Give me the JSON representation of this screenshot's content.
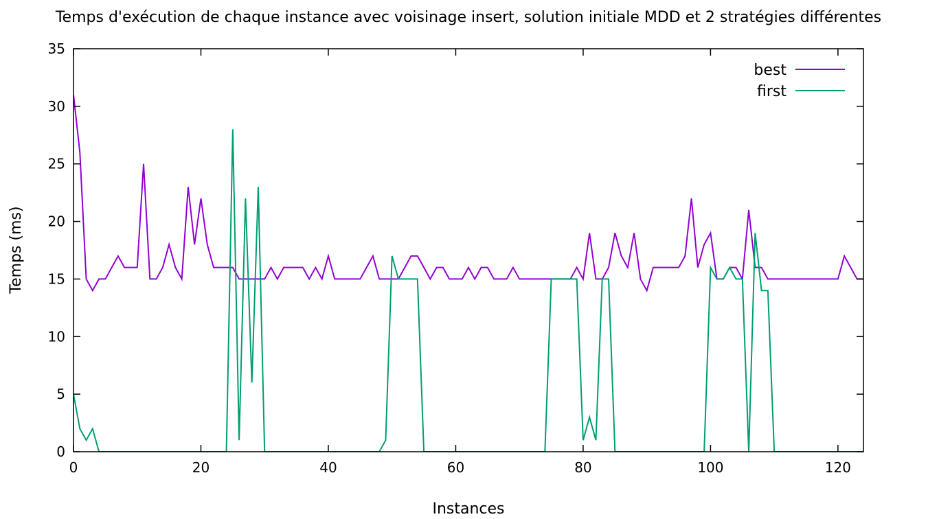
{
  "chart_data": {
    "type": "line",
    "title": "Temps d'exécution de chaque instance avec voisinage insert, solution initiale MDD et 2 stratégies différentes",
    "xlabel": "Instances",
    "ylabel": "Temps (ms)",
    "xlim": [
      0,
      124
    ],
    "ylim": [
      0,
      35
    ],
    "xticks": [
      0,
      20,
      40,
      60,
      80,
      100,
      120
    ],
    "yticks": [
      0,
      5,
      10,
      15,
      20,
      25,
      30,
      35
    ],
    "grid": false,
    "legend_position": "top-right",
    "series": [
      {
        "name": "best",
        "color": "#9400d3",
        "values": [
          31,
          26,
          15,
          14,
          15,
          15,
          16,
          17,
          16,
          16,
          16,
          25,
          15,
          15,
          16,
          18,
          16,
          15,
          23,
          18,
          22,
          18,
          16,
          16,
          16,
          16,
          15,
          15,
          15,
          15,
          15,
          16,
          15,
          16,
          16,
          16,
          16,
          15,
          16,
          15,
          17,
          15,
          15,
          15,
          15,
          15,
          16,
          17,
          15,
          15,
          15,
          15,
          16,
          17,
          17,
          16,
          15,
          16,
          16,
          15,
          15,
          15,
          16,
          15,
          16,
          16,
          15,
          15,
          15,
          16,
          15,
          15,
          15,
          15,
          15,
          15,
          15,
          15,
          15,
          16,
          15,
          19,
          15,
          15,
          16,
          19,
          17,
          16,
          19,
          15,
          14,
          16,
          16,
          16,
          16,
          16,
          17,
          22,
          16,
          18,
          19,
          15,
          15,
          16,
          16,
          15,
          21,
          16,
          16,
          15,
          15,
          15,
          15,
          15,
          15,
          15,
          15,
          15,
          15,
          15,
          15,
          17,
          16,
          15,
          15
        ]
      },
      {
        "name": "first",
        "color": "#009e73",
        "values": [
          5,
          2,
          1,
          2,
          0,
          0,
          0,
          0,
          0,
          0,
          0,
          0,
          0,
          0,
          0,
          0,
          0,
          0,
          0,
          0,
          0,
          0,
          0,
          0,
          0,
          28,
          1,
          22,
          6,
          23,
          0,
          0,
          0,
          0,
          0,
          0,
          0,
          0,
          0,
          0,
          0,
          0,
          0,
          0,
          0,
          0,
          0,
          0,
          0,
          1,
          17,
          15,
          15,
          15,
          15,
          0,
          0,
          0,
          0,
          0,
          0,
          0,
          0,
          0,
          0,
          0,
          0,
          0,
          0,
          0,
          0,
          0,
          0,
          0,
          0,
          15,
          15,
          15,
          15,
          15,
          1,
          3,
          1,
          15,
          15,
          0,
          0,
          0,
          0,
          0,
          0,
          0,
          0,
          0,
          0,
          0,
          0,
          0,
          0,
          0,
          16,
          15,
          15,
          16,
          15,
          15,
          0,
          19,
          14,
          14,
          0,
          0,
          0,
          0,
          0,
          0,
          0,
          0,
          0,
          0,
          0,
          0,
          0,
          0,
          0
        ]
      }
    ]
  }
}
